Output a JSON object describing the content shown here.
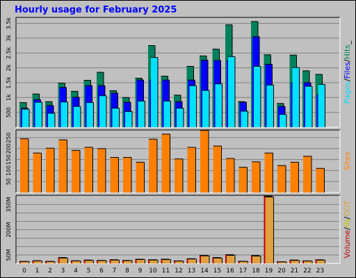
{
  "title": "Hourly usage for February 2025",
  "colors": {
    "hits": "#00805c",
    "files": "#0000ff",
    "pages": "#00e0ff",
    "sites": "#ff8000",
    "kbin": "#e0a040",
    "kbout": "#c00000",
    "bg": "#c0c0c0"
  },
  "chart_data": [
    {
      "type": "bar",
      "name": "requests",
      "categories": [
        "0",
        "1",
        "2",
        "3",
        "4",
        "5",
        "6",
        "7",
        "8",
        "9",
        "10",
        "11",
        "12",
        "13",
        "14",
        "15",
        "16",
        "17",
        "18",
        "19",
        "20",
        "21",
        "22",
        "23"
      ],
      "ylim": [
        0,
        3700
      ],
      "ticks": [
        500,
        1000,
        1500,
        2000,
        2500,
        3000,
        3500
      ],
      "tick_labels": [
        "500",
        "1k",
        "1.5k",
        "2k",
        "2.5k",
        "3k",
        "3.5k"
      ],
      "series": [
        {
          "name": "Hits",
          "values": [
            830,
            1120,
            860,
            1480,
            1210,
            1580,
            1850,
            1230,
            1000,
            1650,
            2750,
            1720,
            1080,
            2050,
            2400,
            2630,
            3450,
            860,
            3560,
            2440,
            800,
            2430,
            1900,
            1780
          ]
        },
        {
          "name": "Files",
          "values": [
            640,
            930,
            730,
            1340,
            1010,
            1400,
            1400,
            1150,
            840,
            1590,
            1590,
            1590,
            860,
            1590,
            2260,
            2250,
            2250,
            840,
            3050,
            2120,
            700,
            1500,
            1500,
            1100
          ]
        },
        {
          "name": "Pages",
          "values": [
            610,
            840,
            470,
            850,
            700,
            830,
            1060,
            640,
            530,
            880,
            2350,
            880,
            640,
            1400,
            1240,
            1460,
            2380,
            540,
            2050,
            1420,
            430,
            2010,
            1380,
            1440
          ]
        }
      ],
      "legend": [
        "Pages",
        "/",
        "Files",
        "/",
        "Hits",
        "_"
      ]
    },
    {
      "type": "bar",
      "name": "sites",
      "categories": [
        "0",
        "1",
        "2",
        "3",
        "4",
        "5",
        "6",
        "7",
        "8",
        "9",
        "10",
        "11",
        "12",
        "13",
        "14",
        "15",
        "16",
        "17",
        "18",
        "19",
        "20",
        "21",
        "22",
        "23"
      ],
      "ylim": [
        0,
        285
      ],
      "ticks": [
        50,
        100,
        150,
        200,
        250
      ],
      "tick_labels": [
        "50",
        "100",
        "150",
        "200",
        "250"
      ],
      "series": [
        {
          "name": "Sites",
          "values": [
            245,
            180,
            202,
            240,
            192,
            206,
            200,
            160,
            160,
            138,
            243,
            266,
            153,
            206,
            283,
            212,
            155,
            115,
            140,
            180,
            123,
            138,
            165,
            110
          ]
        }
      ],
      "legend": [
        "Sites"
      ]
    },
    {
      "type": "bar",
      "name": "volume",
      "categories": [
        "0",
        "1",
        "2",
        "3",
        "4",
        "5",
        "6",
        "7",
        "8",
        "9",
        "10",
        "11",
        "12",
        "13",
        "14",
        "15",
        "16",
        "17",
        "18",
        "19",
        "20",
        "21",
        "22",
        "23"
      ],
      "ylim": [
        0,
        405
      ],
      "ticks": [
        50,
        100,
        150,
        200,
        250,
        300,
        350
      ],
      "tick_labels": [
        "50M",
        "",
        "",
        "200M",
        "",
        "",
        "350M"
      ],
      "series": [
        {
          "name": "Volume",
          "values": [
            12,
            16,
            12,
            35,
            16,
            20,
            18,
            22,
            18,
            25,
            22,
            25,
            15,
            28,
            48,
            35,
            52,
            13,
            47,
            400,
            10,
            20,
            15,
            22
          ]
        },
        {
          "name": "IN",
          "values": [
            5,
            7,
            5,
            12,
            7,
            8,
            8,
            9,
            7,
            10,
            9,
            10,
            6,
            11,
            18,
            13,
            20,
            5,
            18,
            390,
            4,
            8,
            6,
            9
          ]
        },
        {
          "name": "OUT",
          "values": [
            11,
            15,
            11,
            32,
            15,
            18,
            17,
            20,
            17,
            23,
            20,
            23,
            14,
            26,
            45,
            32,
            48,
            12,
            44,
            395,
            9,
            18,
            14,
            20
          ]
        }
      ],
      "legend": [
        "Volume",
        "/",
        "IN",
        "/",
        "OUT"
      ]
    }
  ]
}
